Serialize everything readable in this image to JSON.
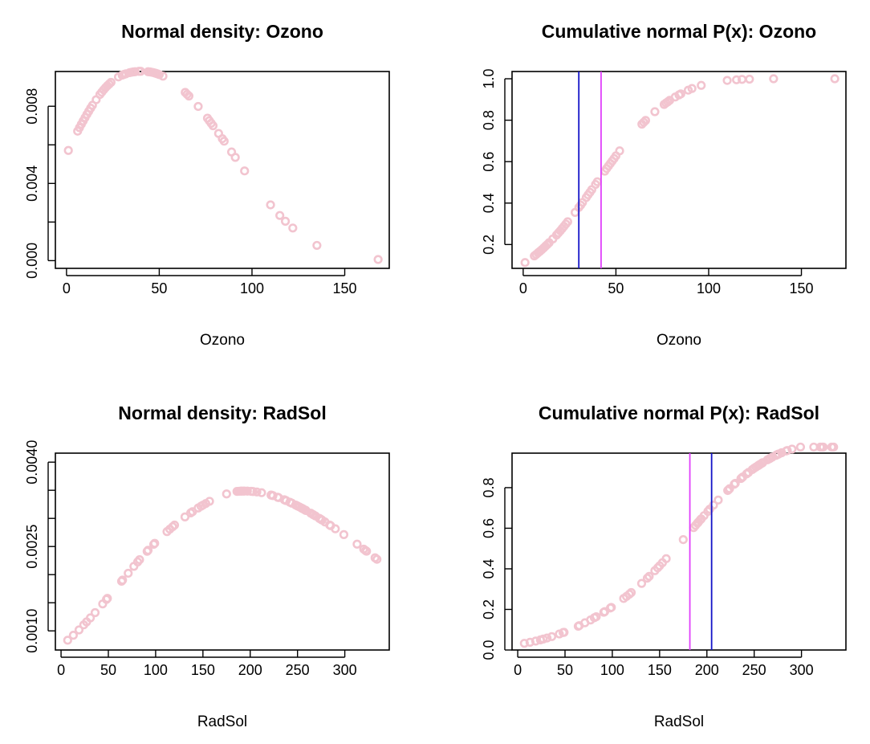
{
  "colors": {
    "point": "#f2c4cf",
    "mean_line": "#e040fb",
    "median_line": "#1414c8",
    "axis": "#000000",
    "background": "#ffffff"
  },
  "chart_data": [
    {
      "type": "scatter",
      "title": "Normal density:  Ozono",
      "xlabel": "Ozono",
      "ylabel": "",
      "xlim": [
        -6,
        174
      ],
      "ylim": [
        -0.0004,
        0.0098
      ],
      "xticks": [
        0,
        50,
        100,
        150
      ],
      "xtick_labels": [
        "0",
        "50",
        "100",
        "150"
      ],
      "yticks": [
        0,
        0.002,
        0.004,
        0.006,
        0.008
      ],
      "ytick_labels": [
        "0.000",
        "",
        "0.004",
        "",
        "0.008"
      ],
      "grid": false,
      "series": [
        {
          "x": [
            1,
            6,
            7,
            8,
            9,
            10,
            11,
            12,
            13,
            14,
            16,
            18,
            19,
            20,
            21,
            22,
            23,
            24,
            28,
            30,
            31,
            32,
            34,
            35,
            36,
            37,
            39,
            40,
            44,
            45,
            46,
            47,
            48,
            49,
            50,
            52,
            64,
            65,
            66,
            71,
            76,
            77,
            78,
            79,
            82,
            84,
            85,
            89,
            91,
            96,
            110,
            115,
            118,
            122,
            135,
            168
          ],
          "y": [
            0.00571,
            0.00671,
            0.00689,
            0.00707,
            0.00724,
            0.00741,
            0.00758,
            0.00774,
            0.0079,
            0.00805,
            0.00834,
            0.00861,
            0.00873,
            0.00885,
            0.00896,
            0.00906,
            0.00915,
            0.00924,
            0.00952,
            0.00961,
            0.00965,
            0.00968,
            0.00974,
            0.00976,
            0.00978,
            0.00979,
            0.00981,
            0.00981,
            0.00979,
            0.00978,
            0.00976,
            0.00974,
            0.00971,
            0.00968,
            0.00964,
            0.00956,
            0.00872,
            0.00862,
            0.00853,
            0.00799,
            0.00738,
            0.00725,
            0.00712,
            0.00699,
            0.00659,
            0.00632,
            0.00619,
            0.00563,
            0.00535,
            0.00465,
            0.00289,
            0.00234,
            0.00204,
            0.00169,
            0.00079,
            6e-05
          ]
        }
      ]
    },
    {
      "type": "scatter",
      "title": "Cumulative normal P(x):  Ozono",
      "xlabel": "Ozono",
      "ylabel": "",
      "xlim": [
        -6,
        174
      ],
      "ylim": [
        0.085,
        1.035
      ],
      "xticks": [
        0,
        50,
        100,
        150
      ],
      "xtick_labels": [
        "0",
        "50",
        "100",
        "150"
      ],
      "yticks": [
        0.2,
        0.4,
        0.6,
        0.8,
        1.0
      ],
      "ytick_labels": [
        "0.2",
        "0.4",
        "0.6",
        "0.8",
        "1.0"
      ],
      "grid": false,
      "vlines": [
        {
          "x": 30,
          "color": "#1414c8"
        },
        {
          "x": 42,
          "color": "#e040fb"
        }
      ],
      "series": [
        {
          "x": [
            1,
            6,
            7,
            8,
            9,
            10,
            11,
            12,
            13,
            14,
            16,
            18,
            19,
            20,
            21,
            22,
            23,
            24,
            28,
            30,
            31,
            32,
            34,
            35,
            36,
            37,
            39,
            40,
            44,
            45,
            46,
            47,
            48,
            49,
            50,
            52,
            64,
            65,
            66,
            71,
            76,
            77,
            78,
            79,
            82,
            84,
            85,
            89,
            91,
            96,
            110,
            115,
            118,
            122,
            135,
            168
          ],
          "y": [
            0.113,
            0.145,
            0.152,
            0.16,
            0.167,
            0.175,
            0.183,
            0.192,
            0.2,
            0.209,
            0.227,
            0.246,
            0.256,
            0.266,
            0.277,
            0.288,
            0.299,
            0.31,
            0.355,
            0.379,
            0.39,
            0.403,
            0.427,
            0.44,
            0.452,
            0.465,
            0.49,
            0.503,
            0.554,
            0.567,
            0.579,
            0.591,
            0.603,
            0.615,
            0.628,
            0.652,
            0.781,
            0.79,
            0.799,
            0.841,
            0.876,
            0.883,
            0.889,
            0.896,
            0.912,
            0.922,
            0.927,
            0.945,
            0.953,
            0.968,
            0.992,
            0.995,
            0.997,
            0.998,
            1.0,
            1.0
          ]
        }
      ]
    },
    {
      "type": "scatter",
      "title": "Normal density:  RadSol",
      "xlabel": "RadSol",
      "ylabel": "",
      "xlim": [
        -6,
        347
      ],
      "ylim": [
        0.00066,
        0.00416
      ],
      "xticks": [
        0,
        50,
        100,
        150,
        200,
        250,
        300
      ],
      "xtick_labels": [
        "0",
        "50",
        "100",
        "150",
        "200",
        "250",
        "300"
      ],
      "yticks": [
        0.001,
        0.0015,
        0.002,
        0.0025,
        0.003,
        0.0035,
        0.004
      ],
      "ytick_labels": [
        "0.0010",
        "",
        "",
        "0.0025",
        "",
        "",
        "0.0040"
      ],
      "grid": false,
      "series": [
        {
          "x": [
            7,
            13,
            19,
            24,
            27,
            31,
            36,
            44,
            48,
            49,
            64,
            65,
            71,
            77,
            81,
            83,
            91,
            92,
            98,
            99,
            112,
            115,
            118,
            120,
            131,
            137,
            139,
            145,
            148,
            150,
            153,
            157,
            175,
            186,
            188,
            190,
            191,
            193,
            194,
            197,
            201,
            203,
            207,
            212,
            222,
            223,
            224,
            229,
            230,
            236,
            237,
            238,
            242,
            244,
            248,
            250,
            252,
            254,
            255,
            256,
            258,
            259,
            264,
            266,
            267,
            269,
            273,
            274,
            275,
            276,
            279,
            284,
            285,
            290,
            299,
            313,
            320,
            322,
            323,
            332,
            334
          ],
          "y": [
            0.000834,
            0.000922,
            0.001017,
            0.001107,
            0.00116,
            0.001231,
            0.001324,
            0.001479,
            0.00156,
            0.001578,
            0.001882,
            0.001903,
            0.002025,
            0.002147,
            0.002226,
            0.002266,
            0.002415,
            0.002433,
            0.002539,
            0.002557,
            0.002765,
            0.002809,
            0.002852,
            0.002881,
            0.003026,
            0.003097,
            0.00312,
            0.003185,
            0.003216,
            0.003236,
            0.003264,
            0.003304,
            0.003435,
            0.00348,
            0.003482,
            0.003485,
            0.003485,
            0.003485,
            0.003486,
            0.003485,
            0.003481,
            0.003478,
            0.00347,
            0.003457,
            0.003415,
            0.00341,
            0.003405,
            0.003376,
            0.00337,
            0.003331,
            0.003323,
            0.003316,
            0.003287,
            0.003271,
            0.003238,
            0.003221,
            0.003204,
            0.003186,
            0.003177,
            0.003168,
            0.003149,
            0.00314,
            0.003093,
            0.003073,
            0.003063,
            0.003043,
            0.003001,
            0.002991,
            0.00298,
            0.00297,
            0.002937,
            0.002882,
            0.002871,
            0.002815,
            0.002712,
            0.002542,
            0.002454,
            0.002428,
            0.002416,
            0.002299,
            0.002273
          ]
        }
      ]
    },
    {
      "type": "scatter",
      "title": "Cumulative normal P(x):  RadSol",
      "xlabel": "RadSol",
      "ylabel": "",
      "xlim": [
        -6,
        347
      ],
      "ylim": [
        0.0,
        0.97
      ],
      "xticks": [
        0,
        50,
        100,
        150,
        200,
        250,
        300
      ],
      "xtick_labels": [
        "0",
        "50",
        "100",
        "150",
        "200",
        "250",
        "300"
      ],
      "yticks": [
        0.0,
        0.2,
        0.4,
        0.6,
        0.8
      ],
      "ytick_labels": [
        "0.0",
        "0.2",
        "0.4",
        "0.6",
        "0.8"
      ],
      "grid": false,
      "vlines": [
        {
          "x": 182,
          "color": "#e040fb"
        },
        {
          "x": 205,
          "color": "#1414c8"
        }
      ],
      "series": [
        {
          "x": [
            7,
            13,
            19,
            24,
            27,
            31,
            36,
            44,
            48,
            49,
            64,
            65,
            71,
            77,
            81,
            83,
            91,
            92,
            98,
            99,
            112,
            115,
            118,
            120,
            131,
            137,
            139,
            145,
            148,
            150,
            153,
            157,
            175,
            186,
            188,
            190,
            191,
            193,
            194,
            197,
            201,
            203,
            207,
            212,
            222,
            223,
            224,
            229,
            230,
            236,
            237,
            238,
            242,
            244,
            248,
            250,
            252,
            254,
            255,
            256,
            258,
            259,
            264,
            266,
            267,
            269,
            273,
            274,
            275,
            276,
            279,
            284,
            285,
            290,
            299,
            313,
            320,
            322,
            323,
            332,
            334
          ],
          "y": [
            0.033,
            0.038,
            0.044,
            0.05,
            0.054,
            0.059,
            0.066,
            0.079,
            0.086,
            0.087,
            0.117,
            0.12,
            0.134,
            0.148,
            0.159,
            0.164,
            0.186,
            0.189,
            0.207,
            0.21,
            0.254,
            0.264,
            0.275,
            0.283,
            0.328,
            0.354,
            0.363,
            0.391,
            0.405,
            0.415,
            0.43,
            0.45,
            0.544,
            0.603,
            0.614,
            0.625,
            0.63,
            0.641,
            0.646,
            0.662,
            0.683,
            0.694,
            0.714,
            0.739,
            0.786,
            0.79,
            0.795,
            0.817,
            0.821,
            0.845,
            0.849,
            0.853,
            0.868,
            0.875,
            0.889,
            0.896,
            0.902,
            0.908,
            0.911,
            0.914,
            0.92,
            0.923,
            0.937,
            0.942,
            0.945,
            0.95,
            0.959,
            0.962,
            0.964,
            0.966,
            0.972,
            0.981,
            0.983,
            0.99,
            1.0,
            1.0,
            1.0,
            1.0,
            1.0,
            1.0,
            1.0
          ]
        }
      ]
    }
  ]
}
